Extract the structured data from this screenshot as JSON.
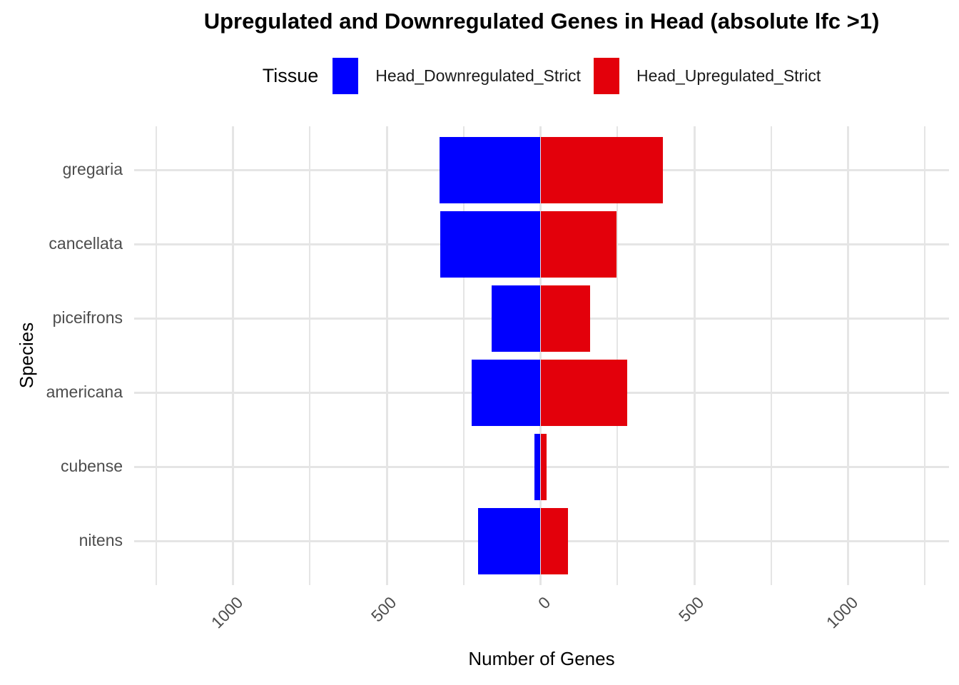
{
  "title": "Upregulated and Downregulated Genes in Head (absolute lfc >1)",
  "legend": {
    "title": "Tissue",
    "entries": [
      {
        "label": "Head_Downregulated_Strict",
        "color": "#0000ff"
      },
      {
        "label": "Head_Upregulated_Strict",
        "color": "#e3000b"
      }
    ]
  },
  "chart_data": {
    "type": "bar",
    "orientation": "horizontal-diverging",
    "title": "Upregulated and Downregulated Genes in Head (absolute lfc >1)",
    "xlabel": "Number of Genes",
    "ylabel": "Species",
    "categories": [
      "gregaria",
      "cancellata",
      "piceifrons",
      "americana",
      "cubense",
      "nitens"
    ],
    "series": [
      {
        "name": "Head_Downregulated_Strict",
        "color": "#0000ff",
        "direction": "negative",
        "values": [
          328,
          327,
          159,
          224,
          19,
          204
        ]
      },
      {
        "name": "Head_Upregulated_Strict",
        "color": "#e3000b",
        "direction": "positive",
        "values": [
          397,
          247,
          162,
          283,
          19,
          89
        ]
      }
    ],
    "x_ticks": [
      {
        "value": -1000,
        "label": "1000"
      },
      {
        "value": -500,
        "label": "500"
      },
      {
        "value": 0,
        "label": "0"
      },
      {
        "value": 500,
        "label": "500"
      },
      {
        "value": 1000,
        "label": "1000"
      }
    ],
    "minor_gridlines": [
      -1250,
      -750,
      -250,
      250,
      750,
      1250
    ],
    "xlim": [
      -1320,
      1328
    ],
    "grid": "on",
    "legend_position": "top",
    "background": "#ffffff",
    "gridline_color": "#e5e5e5",
    "tick_label_color": "#4d4d4d"
  }
}
